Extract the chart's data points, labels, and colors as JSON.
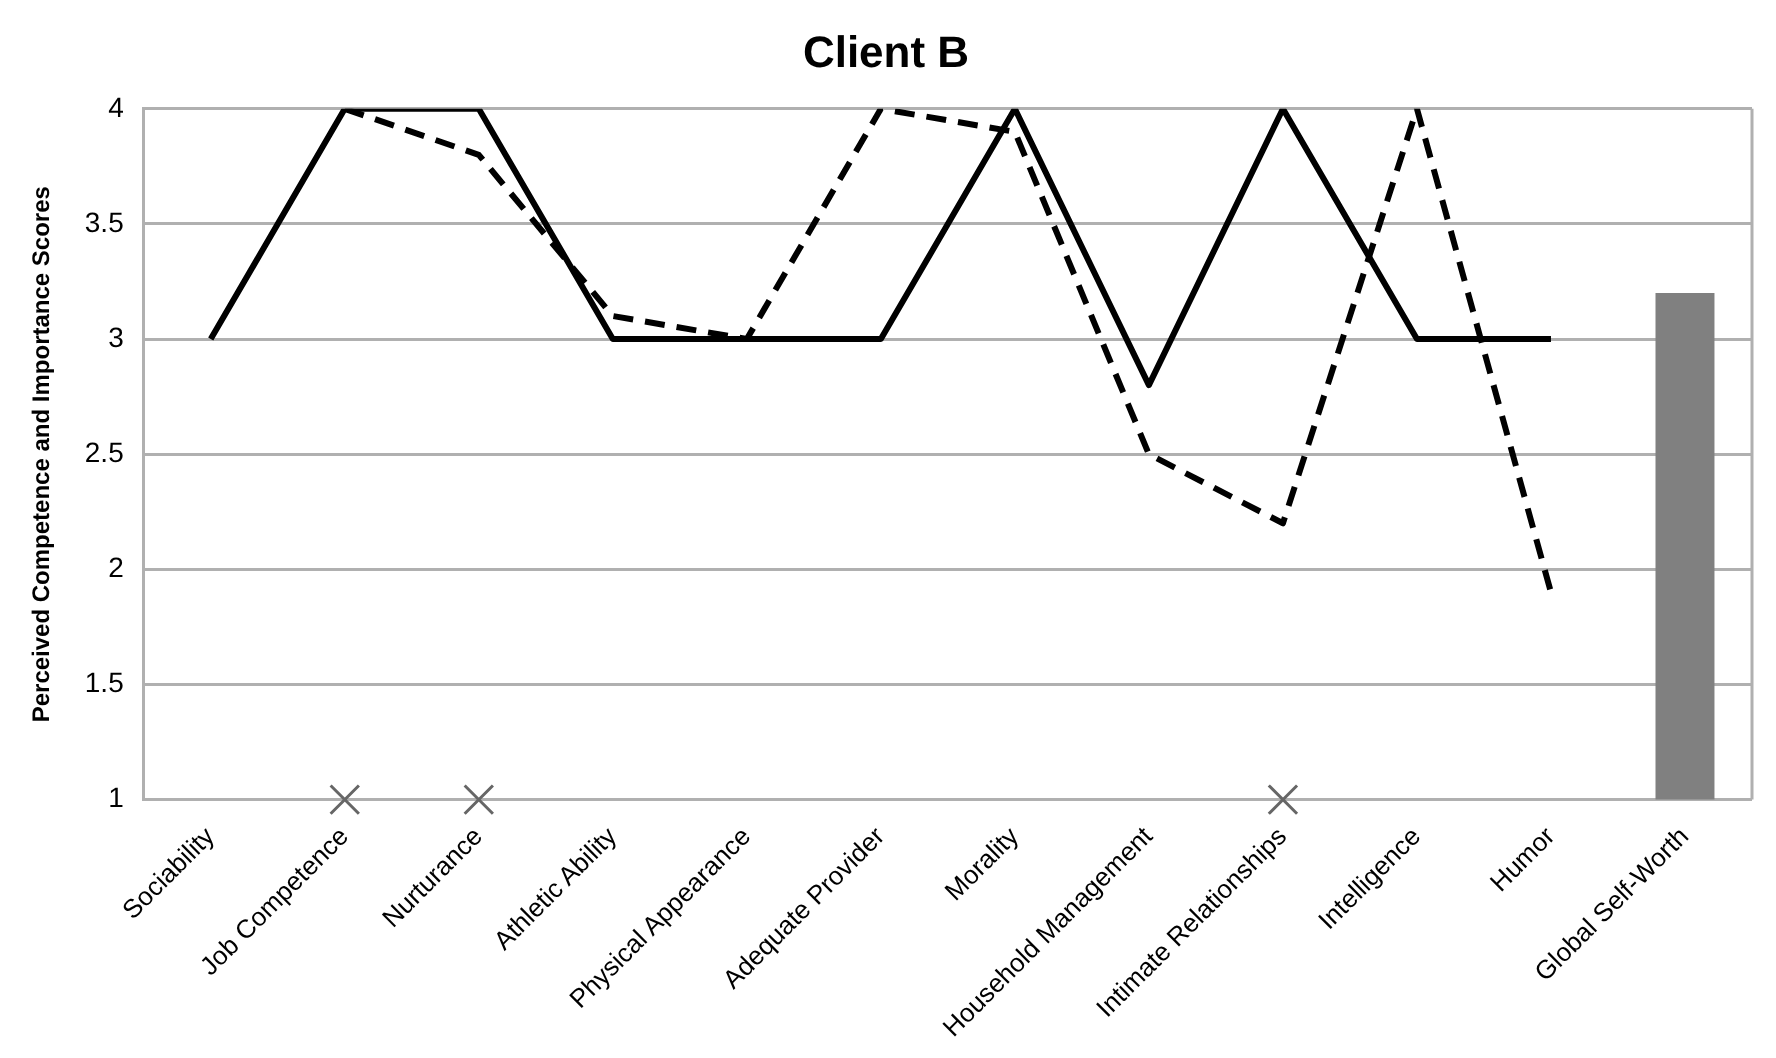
{
  "chart_data": {
    "type": "line",
    "title": "Client B",
    "ylabel": "Perceived Competence and Importance Scores",
    "categories": [
      "Sociability",
      "Job Competence",
      "Nurturance",
      "Athletic Ability",
      "Physical Appearance",
      "Adequate Provider",
      "Morality",
      "Household Management",
      "Intimate Relationships",
      "Intelligence",
      "Humor",
      "Global Self-Worth"
    ],
    "series": [
      {
        "color": "#000000",
        "line_style": "solid",
        "marker": "none",
        "values": [
          3,
          4,
          4,
          3,
          3,
          3,
          4,
          2.8,
          4,
          3,
          3,
          null
        ]
      },
      {
        "color": "#000000",
        "line_style": "dashed",
        "marker": "none",
        "values": [
          null,
          4,
          3.8,
          3.1,
          3,
          4,
          3.9,
          2.5,
          2.2,
          4,
          1.9,
          null
        ]
      },
      {
        "type": "scatter",
        "color": "#666666",
        "marker": "cross",
        "values": [
          null,
          1,
          1,
          null,
          null,
          null,
          null,
          null,
          1,
          null,
          null,
          null
        ]
      },
      {
        "type": "bar",
        "color": "#808080",
        "values": [
          null,
          null,
          null,
          null,
          null,
          null,
          null,
          null,
          null,
          null,
          null,
          3.2
        ]
      }
    ],
    "ylim": [
      1,
      4
    ],
    "yticks": [
      1,
      1.5,
      2,
      2.5,
      3,
      3.5,
      4
    ],
    "grid": "y"
  }
}
